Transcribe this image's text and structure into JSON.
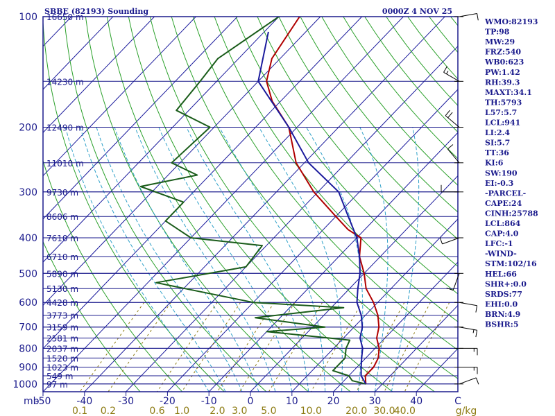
{
  "chart_data": {
    "type": "skew-t sounding",
    "title_left": "SBBE (82193) Sounding",
    "title_right": "0000Z  4 NOV 25",
    "pressure_axis_unit": "mb",
    "pressure_levels": [
      100,
      200,
      300,
      400,
      500,
      600,
      700,
      800,
      900,
      1000
    ],
    "pressure_range": [
      100,
      1050
    ],
    "temperature_ticks": [
      -50,
      -40,
      -30,
      -20,
      -10,
      0,
      10,
      20,
      30,
      40
    ],
    "temperature_unit_tick": "C",
    "temperature_range_bottom": [
      -50,
      50
    ],
    "mixing_ratio_unit": "g/kg",
    "mixing_ratio_labels": [
      "0.1",
      "0.2",
      "0.6",
      "1.0",
      "2.0",
      "3.0",
      "5.0",
      "10.0",
      "20.0",
      "30.0",
      "40.0"
    ],
    "height_labels": [
      {
        "p": 100,
        "label": "16650 m"
      },
      {
        "p": 150,
        "label": "14230 m"
      },
      {
        "p": 200,
        "label": "12490 m"
      },
      {
        "p": 250,
        "label": "11010 m"
      },
      {
        "p": 300,
        "label": "9730 m"
      },
      {
        "p": 350,
        "label": "8606 m"
      },
      {
        "p": 400,
        "label": "7610 m"
      },
      {
        "p": 450,
        "label": "6710 m"
      },
      {
        "p": 500,
        "label": "5890 m"
      },
      {
        "p": 550,
        "label": "5130 m"
      },
      {
        "p": 600,
        "label": "4428 m"
      },
      {
        "p": 650,
        "label": "3773 m"
      },
      {
        "p": 700,
        "label": "3159 m"
      },
      {
        "p": 750,
        "label": "2581 m"
      },
      {
        "p": 800,
        "label": "2037 m"
      },
      {
        "p": 850,
        "label": "1520 m"
      },
      {
        "p": 900,
        "label": "1023 m"
      },
      {
        "p": 950,
        "label": "549 m"
      },
      {
        "p": 1000,
        "label": "97 m"
      }
    ],
    "series": [
      {
        "name": "temperature",
        "color": "#b00000",
        "points": [
          [
            100,
            -75
          ],
          [
            130,
            -72
          ],
          [
            150,
            -68
          ],
          [
            170,
            -62
          ],
          [
            200,
            -52
          ],
          [
            250,
            -42
          ],
          [
            300,
            -31
          ],
          [
            350,
            -20
          ],
          [
            380,
            -14
          ],
          [
            400,
            -9
          ],
          [
            450,
            -5
          ],
          [
            500,
            0
          ],
          [
            550,
            4
          ],
          [
            600,
            9
          ],
          [
            650,
            13
          ],
          [
            700,
            16
          ],
          [
            750,
            18
          ],
          [
            800,
            21
          ],
          [
            850,
            23
          ],
          [
            900,
            24
          ],
          [
            950,
            24
          ],
          [
            1000,
            26
          ]
        ]
      },
      {
        "name": "dewpoint",
        "color": "#1a5c1a",
        "points": [
          [
            100,
            -80
          ],
          [
            130,
            -85
          ],
          [
            150,
            -84
          ],
          [
            180,
            -83
          ],
          [
            200,
            -71
          ],
          [
            250,
            -72
          ],
          [
            270,
            -63
          ],
          [
            290,
            -74
          ],
          [
            320,
            -60
          ],
          [
            360,
            -60
          ],
          [
            400,
            -50
          ],
          [
            420,
            -31
          ],
          [
            480,
            -30
          ],
          [
            530,
            -48
          ],
          [
            600,
            -20
          ],
          [
            620,
            3
          ],
          [
            660,
            -16
          ],
          [
            700,
            3
          ],
          [
            720,
            -10
          ],
          [
            760,
            12
          ],
          [
            800,
            13
          ],
          [
            850,
            15
          ],
          [
            920,
            15
          ],
          [
            950,
            20
          ],
          [
            980,
            22
          ],
          [
            1000,
            26
          ]
        ]
      },
      {
        "name": "parcel",
        "color": "#1a1a9c",
        "points": [
          [
            110,
            -79
          ],
          [
            150,
            -70
          ],
          [
            200,
            -52
          ],
          [
            250,
            -39
          ],
          [
            300,
            -25
          ],
          [
            350,
            -17
          ],
          [
            400,
            -10
          ],
          [
            450,
            -5
          ],
          [
            500,
            -1
          ],
          [
            550,
            2
          ],
          [
            600,
            5
          ],
          [
            650,
            9
          ],
          [
            700,
            12
          ],
          [
            750,
            14
          ],
          [
            800,
            17
          ],
          [
            850,
            19
          ],
          [
            900,
            21
          ],
          [
            950,
            23
          ],
          [
            1000,
            26
          ]
        ]
      }
    ],
    "indices": [
      "WMO:82193",
      "TP:98",
      "MW:29",
      "FRZ:540",
      "WB0:623",
      "PW:1.42",
      "RH:39.3",
      "MAXT:34.1",
      "TH:5793",
      "L57:5.7",
      "LCL:941",
      "LI:2.4",
      "SI:5.7",
      "TT:36",
      "KI:6",
      "SW:190",
      "EI:-0.3",
      "-PARCEL-",
      "CAPE:24",
      "CINH:25788",
      "LCL:864",
      "CAP:4.0",
      "LFC:-1",
      "-WIND-",
      "STM:102/16",
      "HEL:66",
      "SHR+:0.0",
      "SRDS:77",
      "EHI:0.0",
      "BRN:4.9",
      "BSHR:5"
    ],
    "wind_profile": [
      {
        "p": 100,
        "dir": 80,
        "spd": 10
      },
      {
        "p": 150,
        "dir": 300,
        "spd": 15
      },
      {
        "p": 200,
        "dir": 310,
        "spd": 20
      },
      {
        "p": 250,
        "dir": 320,
        "spd": 10
      },
      {
        "p": 300,
        "dir": 270,
        "spd": 10
      },
      {
        "p": 400,
        "dir": 250,
        "spd": 10
      },
      {
        "p": 500,
        "dir": 200,
        "spd": 10
      },
      {
        "p": 600,
        "dir": 100,
        "spd": 10
      },
      {
        "p": 700,
        "dir": 100,
        "spd": 15
      },
      {
        "p": 800,
        "dir": 90,
        "spd": 15
      },
      {
        "p": 900,
        "dir": 90,
        "spd": 15
      },
      {
        "p": 1000,
        "dir": 70,
        "spd": 10
      }
    ],
    "colors": {
      "frame": "#1a1a8c",
      "isobar": "#1a1a8c",
      "isotherm": "#1a1a9c",
      "dry_adiabat": "#2aa02a",
      "moist_adiabat": "#2ea0c8",
      "mixing_ratio": "#8c7a10"
    }
  }
}
